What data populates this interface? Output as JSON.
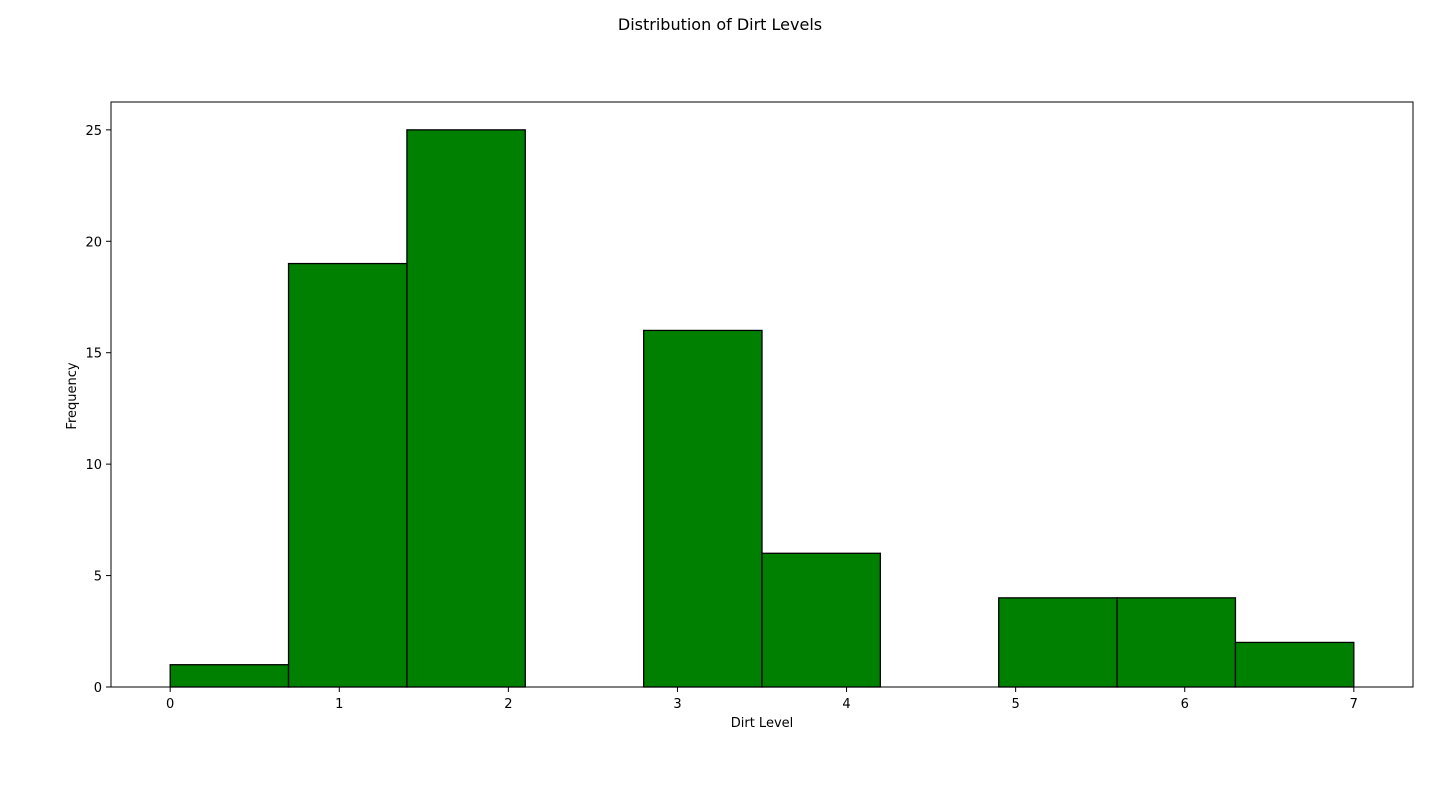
{
  "chart_data": {
    "type": "bar",
    "title": "Distribution of Dirt Levels",
    "xlabel": "Dirt Level",
    "ylabel": "Frequency",
    "bin_edges": [
      0,
      0.7,
      1.4,
      2.1,
      2.8,
      3.5,
      4.2,
      4.9,
      5.6,
      6.3,
      7.0
    ],
    "values": [
      1,
      19,
      25,
      0,
      16,
      6,
      0,
      4,
      4,
      2
    ],
    "xlim": [
      -0.35,
      7.35
    ],
    "ylim": [
      0,
      26.25
    ],
    "xticks": [
      0,
      1,
      2,
      3,
      4,
      5,
      6,
      7
    ],
    "yticks": [
      0,
      5,
      10,
      15,
      20,
      25
    ],
    "grid": false,
    "bar_color": "#008000",
    "edge_color": "#000000"
  }
}
